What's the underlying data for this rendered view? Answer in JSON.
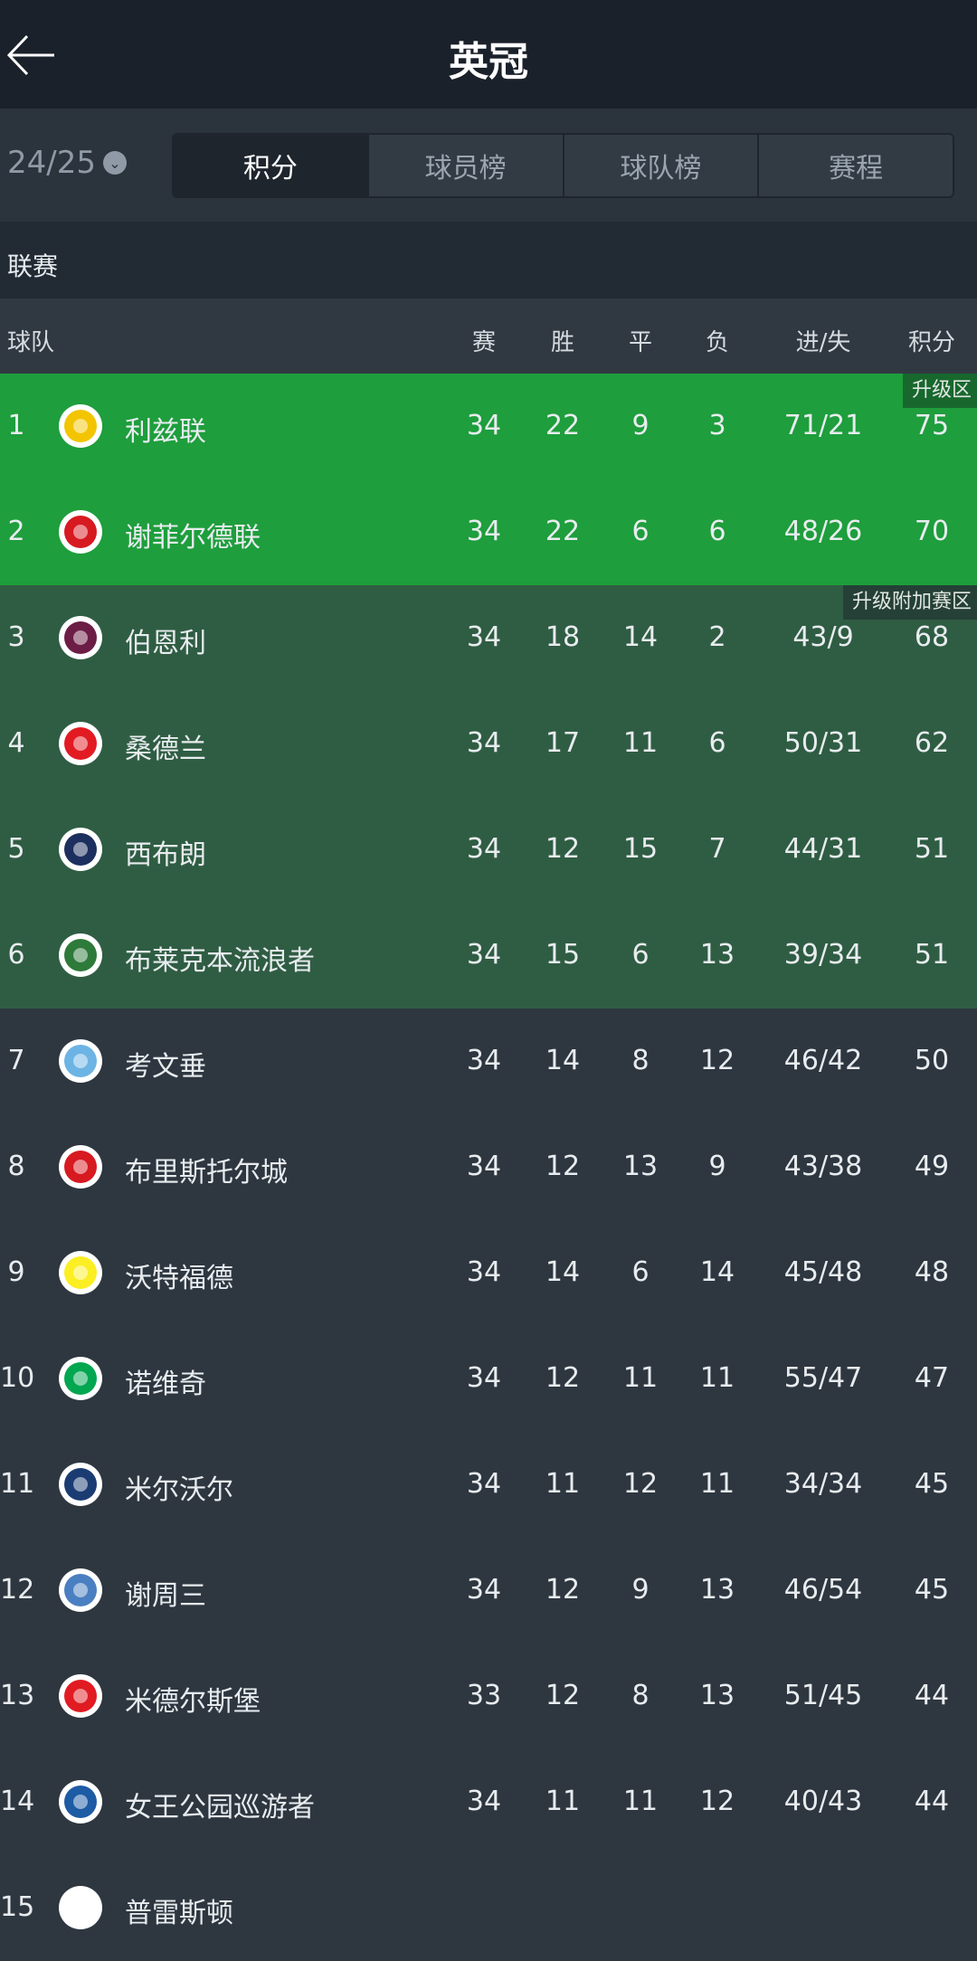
{
  "header": {
    "title": "英冠"
  },
  "season": {
    "label": "24/25"
  },
  "tabs": [
    {
      "label": "积分"
    },
    {
      "label": "球员榜"
    },
    {
      "label": "球队榜"
    },
    {
      "label": "赛程"
    }
  ],
  "section": {
    "label": "联赛"
  },
  "columns": {
    "team": "球队",
    "played": "赛",
    "won": "胜",
    "drawn": "平",
    "lost": "负",
    "gd": "进/失",
    "points": "积分"
  },
  "zones": {
    "promotion": "升级区",
    "playoff": "升级附加赛区",
    "promotion_color": "#1e9e3c",
    "playoff_color": "#2f5d43"
  },
  "rows": [
    {
      "rank": "1",
      "team": "利兹联",
      "p": "34",
      "w": "22",
      "d": "9",
      "l": "3",
      "gd": "71/21",
      "pts": "75",
      "logo": "#f2c500"
    },
    {
      "rank": "2",
      "team": "谢菲尔德联",
      "p": "34",
      "w": "22",
      "d": "6",
      "l": "6",
      "gd": "48/26",
      "pts": "70",
      "logo": "#d71920"
    },
    {
      "rank": "3",
      "team": "伯恩利",
      "p": "34",
      "w": "18",
      "d": "14",
      "l": "2",
      "gd": "43/9",
      "pts": "68",
      "logo": "#6c1d45"
    },
    {
      "rank": "4",
      "team": "桑德兰",
      "p": "34",
      "w": "17",
      "d": "11",
      "l": "6",
      "gd": "50/31",
      "pts": "62",
      "logo": "#e21b23"
    },
    {
      "rank": "5",
      "team": "西布朗",
      "p": "34",
      "w": "12",
      "d": "15",
      "l": "7",
      "gd": "44/31",
      "pts": "51",
      "logo": "#1c2f5e"
    },
    {
      "rank": "6",
      "team": "布莱克本流浪者",
      "p": "34",
      "w": "15",
      "d": "6",
      "l": "13",
      "gd": "39/34",
      "pts": "51",
      "logo": "#2d7a3a"
    },
    {
      "rank": "7",
      "team": "考文垂",
      "p": "34",
      "w": "14",
      "d": "8",
      "l": "12",
      "gd": "46/42",
      "pts": "50",
      "logo": "#6cb4e4"
    },
    {
      "rank": "8",
      "team": "布里斯托尔城",
      "p": "34",
      "w": "12",
      "d": "13",
      "l": "9",
      "gd": "43/38",
      "pts": "49",
      "logo": "#d71920"
    },
    {
      "rank": "9",
      "team": "沃特福德",
      "p": "34",
      "w": "14",
      "d": "6",
      "l": "14",
      "gd": "45/48",
      "pts": "48",
      "logo": "#fbee23"
    },
    {
      "rank": "10",
      "team": "诺维奇",
      "p": "34",
      "w": "12",
      "d": "11",
      "l": "11",
      "gd": "55/47",
      "pts": "47",
      "logo": "#00a650"
    },
    {
      "rank": "11",
      "team": "米尔沃尔",
      "p": "34",
      "w": "11",
      "d": "12",
      "l": "11",
      "gd": "34/34",
      "pts": "45",
      "logo": "#1b3c73"
    },
    {
      "rank": "12",
      "team": "谢周三",
      "p": "34",
      "w": "12",
      "d": "9",
      "l": "13",
      "gd": "46/54",
      "pts": "45",
      "logo": "#4a7fc1"
    },
    {
      "rank": "13",
      "team": "米德尔斯堡",
      "p": "33",
      "w": "12",
      "d": "8",
      "l": "13",
      "gd": "51/45",
      "pts": "44",
      "logo": "#e11b22"
    },
    {
      "rank": "14",
      "team": "女王公园巡游者",
      "p": "34",
      "w": "11",
      "d": "11",
      "l": "12",
      "gd": "40/43",
      "pts": "44",
      "logo": "#1d5ba4"
    },
    {
      "rank": "15",
      "team": "普雷斯顿",
      "p": "",
      "w": "",
      "d": "",
      "l": "",
      "gd": "",
      "pts": "",
      "logo": "#ffffff"
    }
  ]
}
